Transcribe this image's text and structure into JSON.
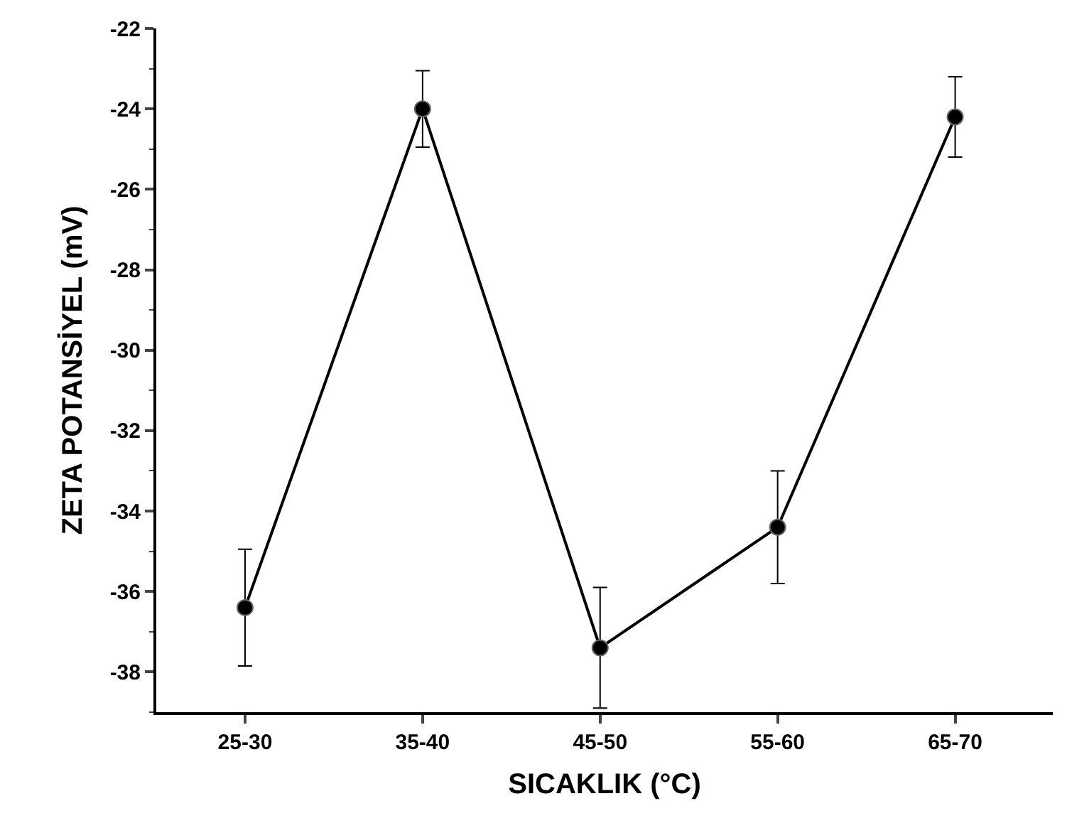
{
  "chart_data": {
    "type": "line",
    "xlabel": "SICAKLIK (°C)",
    "ylabel": "ZETA POTANSİYEL (mV)",
    "categories": [
      "25-30",
      "35-40",
      "45-50",
      "55-60",
      "65-70"
    ],
    "series": [
      {
        "color": "#000000",
        "values": [
          -36.4,
          -24.0,
          -37.4,
          -34.4,
          -24.2
        ],
        "errors": [
          1.45,
          0.95,
          1.5,
          1.4,
          1.0
        ]
      }
    ],
    "ylim": [
      -39,
      -22
    ],
    "yticks": [
      -38,
      -36,
      -34,
      -32,
      -30,
      -28,
      -26,
      -24,
      -22
    ],
    "grid": false,
    "marker": "circle",
    "line_style": "solid"
  }
}
